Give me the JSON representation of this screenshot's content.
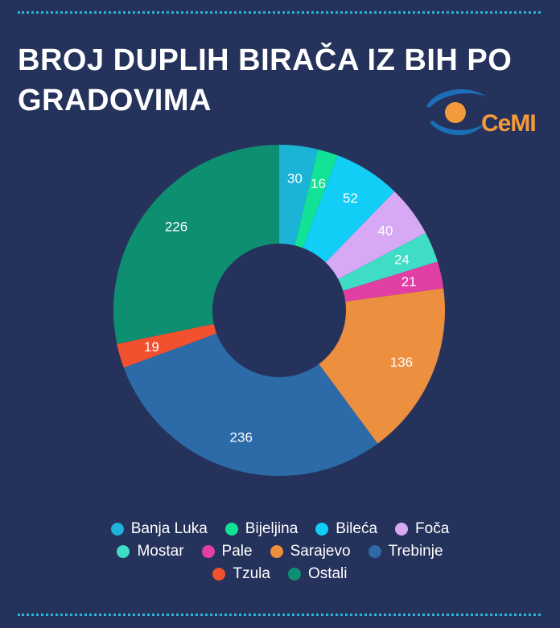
{
  "title": "BROJ DUPLIH BIRAČA IZ BIH PO GRADOVIMA",
  "logo": {
    "text": "CeMI",
    "colors": {
      "blue": "#1c6fb7",
      "orange": "#f39a3c"
    }
  },
  "colors": {
    "background": "#25325b",
    "accent_rule": "#2ab4d8",
    "text": "#ffffff"
  },
  "chart_data": {
    "type": "pie",
    "variant": "donut",
    "title": "BROJ DUPLIH BIRAČA IZ BIH PO GRADOVIMA",
    "categories": [
      "Banja Luka",
      "Bijeljina",
      "Bileća",
      "Foča",
      "Mostar",
      "Pale",
      "Sarajevo",
      "Trebinje",
      "Tzula",
      "Ostali"
    ],
    "values": [
      30,
      16,
      52,
      40,
      24,
      21,
      136,
      236,
      19,
      226
    ],
    "colors": [
      "#1bb3d6",
      "#12e295",
      "#12cdf5",
      "#d7a9f5",
      "#3fdcc6",
      "#e23fa4",
      "#ec8f3e",
      "#2d6aa8",
      "#f2512f",
      "#0e8f72"
    ],
    "legend_position": "bottom",
    "legend_rows": [
      [
        "Banja Luka",
        "Bijeljina",
        "Bileća",
        "Foča"
      ],
      [
        "Mostar",
        "Pale",
        "Sarajevo",
        "Trebinje"
      ],
      [
        "Tzula",
        "Ostali"
      ]
    ],
    "data_labels": true,
    "start_angle_deg": 0,
    "direction": "clockwise"
  }
}
